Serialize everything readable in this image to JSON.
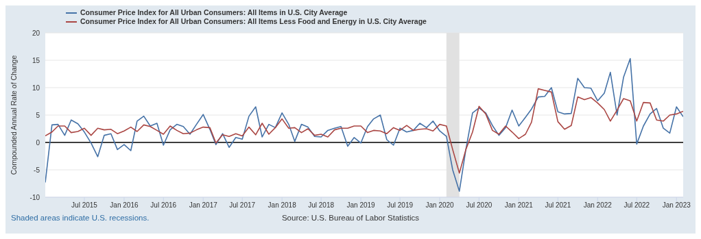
{
  "chart_data": {
    "type": "line",
    "ylabel": "Compounded Annual Rate of Change",
    "x": [
      "2015-01",
      "2015-02",
      "2015-03",
      "2015-04",
      "2015-05",
      "2015-06",
      "2015-07",
      "2015-08",
      "2015-09",
      "2015-10",
      "2015-11",
      "2015-12",
      "2016-01",
      "2016-02",
      "2016-03",
      "2016-04",
      "2016-05",
      "2016-06",
      "2016-07",
      "2016-08",
      "2016-09",
      "2016-10",
      "2016-11",
      "2016-12",
      "2017-01",
      "2017-02",
      "2017-03",
      "2017-04",
      "2017-05",
      "2017-06",
      "2017-07",
      "2017-08",
      "2017-09",
      "2017-10",
      "2017-11",
      "2017-12",
      "2018-01",
      "2018-02",
      "2018-03",
      "2018-04",
      "2018-05",
      "2018-06",
      "2018-07",
      "2018-08",
      "2018-09",
      "2018-10",
      "2018-11",
      "2018-12",
      "2019-01",
      "2019-02",
      "2019-03",
      "2019-04",
      "2019-05",
      "2019-06",
      "2019-07",
      "2019-08",
      "2019-09",
      "2019-10",
      "2019-11",
      "2019-12",
      "2020-01",
      "2020-02",
      "2020-03",
      "2020-04",
      "2020-05",
      "2020-06",
      "2020-07",
      "2020-08",
      "2020-09",
      "2020-10",
      "2020-11",
      "2020-12",
      "2021-01",
      "2021-02",
      "2021-03",
      "2021-04",
      "2021-05",
      "2021-06",
      "2021-07",
      "2021-08",
      "2021-09",
      "2021-10",
      "2021-11",
      "2021-12",
      "2022-01",
      "2022-02",
      "2022-03",
      "2022-04",
      "2022-05",
      "2022-06",
      "2022-07",
      "2022-08",
      "2022-09",
      "2022-10",
      "2022-11",
      "2022-12",
      "2023-01",
      "2023-02"
    ],
    "series": [
      {
        "name": "Consumer Price Index for All Urban Consumers: All Items in U.S. City Average",
        "color": "#4572a7",
        "values": [
          -7.3,
          3.2,
          3.3,
          1.3,
          4.1,
          3.4,
          1.9,
          -0.1,
          -2.6,
          1.3,
          1.6,
          -1.3,
          -0.4,
          -1.5,
          3.9,
          4.8,
          3.0,
          3.5,
          -0.5,
          2.3,
          3.3,
          2.9,
          1.5,
          3.3,
          5.1,
          2.4,
          -0.4,
          1.6,
          -0.9,
          0.9,
          0.6,
          4.8,
          6.5,
          1.0,
          3.3,
          2.7,
          5.4,
          3.3,
          0.2,
          3.3,
          2.8,
          1.1,
          1.0,
          2.2,
          2.6,
          2.9,
          -0.7,
          0.9,
          -0.1,
          2.9,
          4.3,
          5.0,
          0.5,
          -0.5,
          2.6,
          1.9,
          2.2,
          3.5,
          2.7,
          3.9,
          2.1,
          1.1,
          -5.0,
          -8.9,
          -1.3,
          5.4,
          6.3,
          5.4,
          3.1,
          1.3,
          2.7,
          5.9,
          3.0,
          4.6,
          6.1,
          8.3,
          8.4,
          10.0,
          5.6,
          5.2,
          5.3,
          11.7,
          10.0,
          9.9,
          7.6,
          9.0,
          12.8,
          5.0,
          11.9,
          15.3,
          -0.3,
          3.0,
          5.2,
          6.2,
          2.6,
          1.7,
          6.5,
          4.7
        ]
      },
      {
        "name": "Consumer Price Index for All Urban Consumers: All Items Less Food and Energy in U.S. City Average",
        "color": "#aa4643",
        "values": [
          1.2,
          1.9,
          3.0,
          3.0,
          1.8,
          2.0,
          2.6,
          1.3,
          2.6,
          2.3,
          2.4,
          1.6,
          2.1,
          2.8,
          2.0,
          3.2,
          2.9,
          2.2,
          1.5,
          3.0,
          2.2,
          1.6,
          1.7,
          2.3,
          2.8,
          2.7,
          -0.1,
          1.4,
          1.1,
          1.6,
          1.2,
          2.8,
          1.4,
          3.5,
          1.5,
          2.7,
          4.3,
          2.6,
          2.7,
          1.8,
          2.5,
          1.3,
          1.5,
          1.0,
          2.3,
          2.6,
          2.6,
          3.0,
          3.0,
          1.8,
          2.2,
          2.1,
          1.6,
          2.7,
          2.2,
          3.1,
          2.2,
          2.4,
          2.5,
          2.1,
          3.3,
          3.0,
          -1.3,
          -5.6,
          -1.3,
          1.9,
          6.6,
          5.2,
          2.2,
          1.5,
          3.0,
          1.9,
          0.7,
          1.5,
          3.7,
          9.8,
          9.5,
          9.2,
          3.8,
          2.4,
          3.1,
          8.3,
          7.8,
          8.2,
          7.2,
          6.0,
          3.9,
          5.9,
          8.0,
          7.6,
          3.9,
          7.3,
          7.2,
          4.1,
          3.9,
          5.0,
          5.2,
          5.7
        ]
      }
    ],
    "xlim": [
      "2015-01",
      "2023-02"
    ],
    "xticks": [
      {
        "value": "2015-07",
        "label": "Jul 2015"
      },
      {
        "value": "2016-01",
        "label": "Jan 2016"
      },
      {
        "value": "2016-07",
        "label": "Jul 2016"
      },
      {
        "value": "2017-01",
        "label": "Jan 2017"
      },
      {
        "value": "2017-07",
        "label": "Jul 2017"
      },
      {
        "value": "2018-01",
        "label": "Jan 2018"
      },
      {
        "value": "2018-07",
        "label": "Jul 2018"
      },
      {
        "value": "2019-01",
        "label": "Jan 2019"
      },
      {
        "value": "2019-07",
        "label": "Jul 2019"
      },
      {
        "value": "2020-01",
        "label": "Jan 2020"
      },
      {
        "value": "2020-07",
        "label": "Jul 2020"
      },
      {
        "value": "2021-01",
        "label": "Jan 2021"
      },
      {
        "value": "2021-07",
        "label": "Jul 2021"
      },
      {
        "value": "2022-01",
        "label": "Jan 2022"
      },
      {
        "value": "2022-07",
        "label": "Jul 2022"
      },
      {
        "value": "2023-01",
        "label": "Jan 2023"
      }
    ],
    "ylim": [
      -10,
      20
    ],
    "yticks": [
      -10,
      -5,
      0,
      5,
      10,
      15,
      20
    ],
    "grid": "y",
    "legend": "top left",
    "marker": "none",
    "line_style": "solid",
    "ref_lines": [
      {
        "axis": "y",
        "value": 0,
        "color": "#000000"
      }
    ],
    "bands": [
      {
        "axis": "x",
        "from": "2020-02",
        "to": "2020-04",
        "color": "#e1e1e1"
      }
    ],
    "annotations": [
      "Shaded areas indicate U.S. recessions.",
      "Source: U.S. Bureau of Labor Statistics"
    ]
  }
}
